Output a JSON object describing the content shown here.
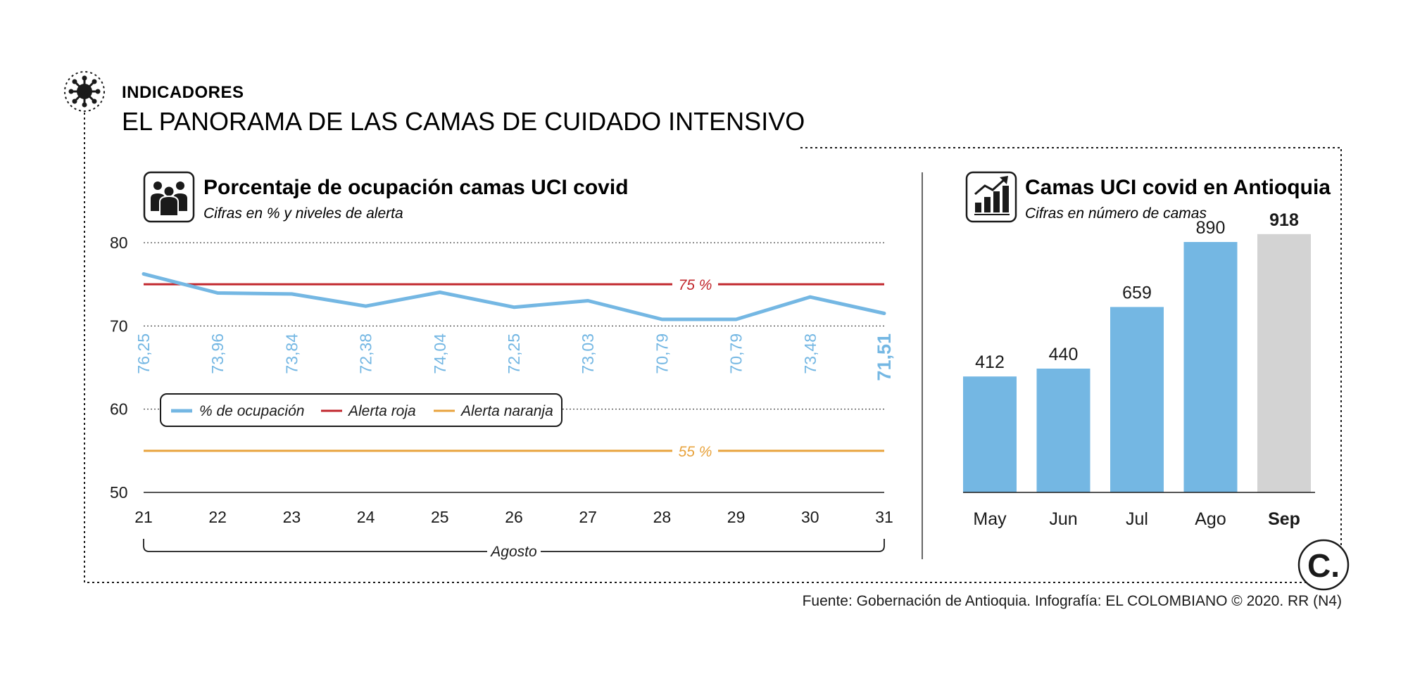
{
  "header": {
    "kicker": "INDICADORES",
    "headline": "EL PANORAMA DE LAS CAMAS DE CUIDADO INTENSIVO"
  },
  "colors": {
    "line": "#74b7e3",
    "alert_red": "#c1272d",
    "alert_orange": "#e8a33d",
    "bar": "#74b7e3",
    "bar_highlight": "#d3d3d3"
  },
  "chart_data": [
    {
      "type": "line",
      "title": "Porcentaje de ocupación camas UCI covid",
      "subtitle": "Cifras en % y niveles de alerta",
      "x": [
        "21",
        "22",
        "23",
        "24",
        "25",
        "26",
        "27",
        "28",
        "29",
        "30",
        "31"
      ],
      "xlabel": "Agosto",
      "ylim": [
        50,
        80
      ],
      "yticks": [
        "50",
        "60",
        "70",
        "80"
      ],
      "grid": true,
      "series": [
        {
          "name": "% de ocupación",
          "values": [
            76.25,
            73.96,
            73.84,
            72.38,
            74.04,
            72.25,
            73.03,
            70.79,
            70.79,
            73.48,
            71.51
          ],
          "labels": [
            "76,25",
            "73,96",
            "73,84",
            "72,38",
            "74,04",
            "72,25",
            "73,03",
            "70,79",
            "70,79",
            "73,48",
            "71,51"
          ]
        }
      ],
      "reference_lines": [
        {
          "name": "Alerta roja",
          "value": 75,
          "label": "75 %"
        },
        {
          "name": "Alerta naranja",
          "value": 55,
          "label": "55 %"
        }
      ],
      "legend_items": [
        "% de ocupación",
        "Alerta roja",
        "Alerta naranja"
      ]
    },
    {
      "type": "bar",
      "title": "Camas UCI covid en Antioquia",
      "subtitle": "Cifras en número de camas",
      "categories": [
        "May",
        "Jun",
        "Jul",
        "Ago",
        "Sep"
      ],
      "values": [
        412,
        440,
        659,
        890,
        918
      ],
      "labels": [
        "412",
        "440",
        "659",
        "890",
        "918"
      ],
      "highlight_last": true
    }
  ],
  "footer": {
    "source": "Fuente: Gobernación de Antioquia. Infografía: EL COLOMBIANO © 2020. RR (N4)"
  },
  "icons": {
    "virus": "virus-icon",
    "people": "people-icon",
    "growth": "bar-growth-icon",
    "logo": "el-colombiano-logo"
  },
  "logo_letter": "C."
}
